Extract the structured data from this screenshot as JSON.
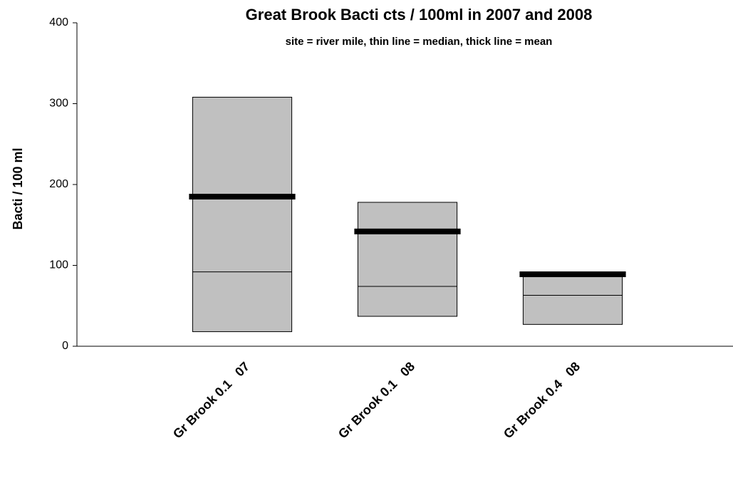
{
  "chart_data": {
    "type": "floating-box",
    "title": "Great Brook Bacti cts / 100ml in 2007 and 2008",
    "subtitle": "site = river mile, thin line = median, thick line = mean",
    "y_label": "Bacti / 100 ml",
    "categories": [
      "Gr Brook 0.1   07",
      "Gr Brook 0.1   08",
      "Gr Brook 0.4   08"
    ],
    "max": [
      308,
      178,
      88
    ],
    "min": [
      18,
      37,
      27
    ],
    "median": [
      92,
      74,
      63
    ],
    "mean": [
      185,
      142,
      89
    ],
    "box_color": "#c0c0c0",
    "ylim": [
      0,
      400
    ],
    "yticks": [
      0,
      100,
      200,
      300,
      400
    ]
  }
}
